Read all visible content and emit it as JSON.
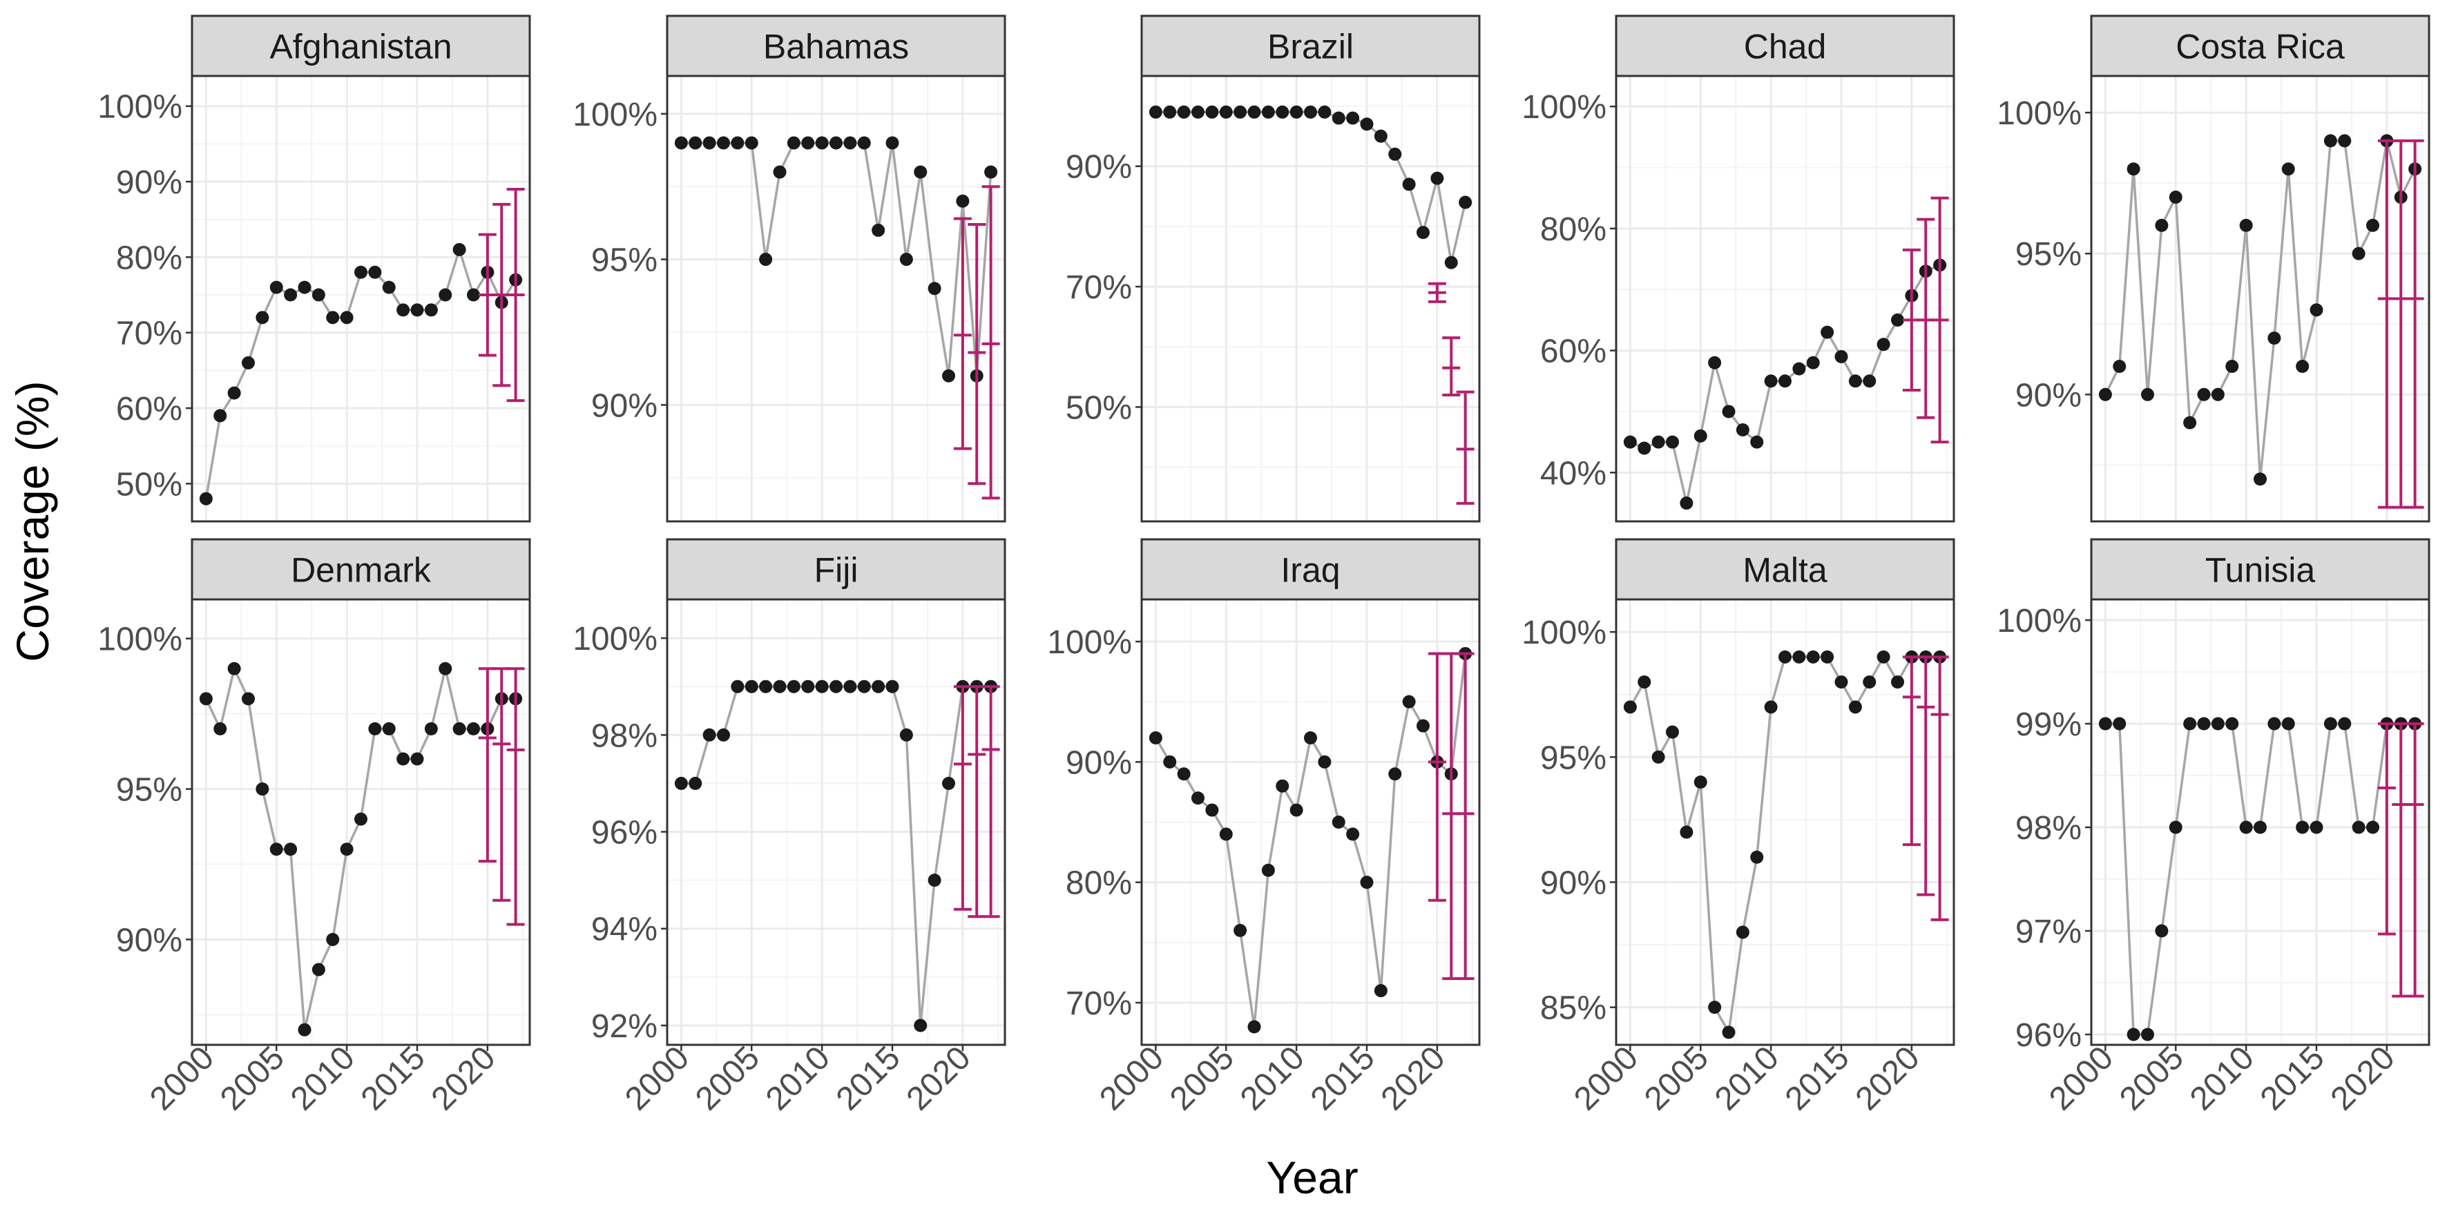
{
  "figure": {
    "xlabel": "Year",
    "ylabel": "Coverage (%)",
    "colors": {
      "line": "#a6a6a6",
      "point": "#1a1a1a",
      "errorbar": "#b3206e",
      "strip": "#d9d9d9",
      "grid_major": "#ebebeb",
      "grid_minor": "#f4f4f4",
      "border": "#333333"
    }
  },
  "chart_data": [
    {
      "type": "line",
      "title": "Afghanistan",
      "x": [
        2000,
        2001,
        2002,
        2003,
        2004,
        2005,
        2006,
        2007,
        2008,
        2009,
        2010,
        2011,
        2012,
        2013,
        2014,
        2015,
        2016,
        2017,
        2018,
        2019,
        2020,
        2021,
        2022
      ],
      "y": [
        48,
        59,
        62,
        66,
        72,
        76,
        75,
        76,
        75,
        72,
        72,
        78,
        78,
        76,
        73,
        73,
        73,
        75,
        81,
        75,
        78,
        74,
        77
      ],
      "errorbars": [
        {
          "x": 2020,
          "mid": 75,
          "lo": 67,
          "hi": 83
        },
        {
          "x": 2021,
          "mid": 75,
          "lo": 63,
          "hi": 87
        },
        {
          "x": 2022,
          "mid": 75,
          "lo": 61,
          "hi": 89
        }
      ],
      "ylim": [
        45,
        104
      ],
      "yticks": [
        50,
        60,
        70,
        80,
        90,
        100
      ],
      "xlim": [
        1999,
        2023
      ],
      "xticks": [
        2000,
        2005,
        2010,
        2015,
        2020
      ]
    },
    {
      "type": "line",
      "title": "Bahamas",
      "x": [
        2000,
        2001,
        2002,
        2003,
        2004,
        2005,
        2006,
        2007,
        2008,
        2009,
        2010,
        2011,
        2012,
        2013,
        2014,
        2015,
        2016,
        2017,
        2018,
        2019,
        2020,
        2021,
        2022
      ],
      "y": [
        99,
        99,
        99,
        99,
        99,
        99,
        95,
        98,
        99,
        99,
        99,
        99,
        99,
        99,
        96,
        99,
        95,
        98,
        94,
        91,
        97,
        91,
        98
      ],
      "errorbars": [
        {
          "x": 2020,
          "mid": 92.4,
          "lo": 88.5,
          "hi": 96.4
        },
        {
          "x": 2021,
          "mid": 91.8,
          "lo": 87.3,
          "hi": 96.2
        },
        {
          "x": 2022,
          "mid": 92.1,
          "lo": 86.8,
          "hi": 97.5
        }
      ],
      "ylim": [
        86,
        101.3
      ],
      "yticks": [
        90,
        95,
        100
      ],
      "xlim": [
        1999,
        2023
      ],
      "xticks": [
        2000,
        2005,
        2010,
        2015,
        2020
      ]
    },
    {
      "type": "line",
      "title": "Brazil",
      "x": [
        2000,
        2001,
        2002,
        2003,
        2004,
        2005,
        2006,
        2007,
        2008,
        2009,
        2010,
        2011,
        2012,
        2013,
        2014,
        2015,
        2016,
        2017,
        2018,
        2019,
        2020,
        2021,
        2022
      ],
      "y": [
        99,
        99,
        99,
        99,
        99,
        99,
        99,
        99,
        99,
        99,
        99,
        99,
        99,
        98,
        98,
        97,
        95,
        92,
        87,
        79,
        88,
        74,
        84
      ],
      "errorbars": [
        {
          "x": 2020,
          "mid": 69,
          "lo": 67.5,
          "hi": 70.5
        },
        {
          "x": 2021,
          "mid": 56.5,
          "lo": 52,
          "hi": 61.5
        },
        {
          "x": 2022,
          "mid": 43,
          "lo": 34,
          "hi": 52.5
        }
      ],
      "ylim": [
        31,
        105
      ],
      "yticks": [
        50,
        70,
        90
      ],
      "xlim": [
        1999,
        2023
      ],
      "xticks": [
        2000,
        2005,
        2010,
        2015,
        2020
      ]
    },
    {
      "type": "line",
      "title": "Chad",
      "x": [
        2000,
        2001,
        2002,
        2003,
        2004,
        2005,
        2006,
        2007,
        2008,
        2009,
        2010,
        2011,
        2012,
        2013,
        2014,
        2015,
        2016,
        2017,
        2018,
        2019,
        2020,
        2021,
        2022
      ],
      "y": [
        45,
        44,
        45,
        45,
        35,
        46,
        58,
        50,
        47,
        45,
        55,
        55,
        57,
        58,
        63,
        59,
        55,
        55,
        61,
        65,
        69,
        73,
        74
      ],
      "errorbars": [
        {
          "x": 2020,
          "mid": 65,
          "lo": 53.5,
          "hi": 76.5
        },
        {
          "x": 2021,
          "mid": 65,
          "lo": 49,
          "hi": 81.5
        },
        {
          "x": 2022,
          "mid": 65,
          "lo": 45,
          "hi": 85
        }
      ],
      "ylim": [
        32,
        105
      ],
      "yticks": [
        40,
        60,
        80,
        100
      ],
      "xlim": [
        1999,
        2023
      ],
      "xticks": [
        2000,
        2005,
        2010,
        2015,
        2020
      ]
    },
    {
      "type": "line",
      "title": "Costa Rica",
      "x": [
        2000,
        2001,
        2002,
        2003,
        2004,
        2005,
        2006,
        2007,
        2008,
        2009,
        2010,
        2011,
        2012,
        2013,
        2014,
        2015,
        2016,
        2017,
        2018,
        2019,
        2020,
        2021,
        2022
      ],
      "y": [
        90,
        91,
        98,
        90,
        96,
        97,
        89,
        90,
        90,
        91,
        96,
        87,
        92,
        98,
        91,
        93,
        99,
        99,
        95,
        96,
        99,
        97,
        98
      ],
      "errorbars": [
        {
          "x": 2020,
          "mid": 93.4,
          "lo": 86,
          "hi": 99
        },
        {
          "x": 2021,
          "mid": 93.4,
          "lo": 86,
          "hi": 99
        },
        {
          "x": 2022,
          "mid": 93.4,
          "lo": 86,
          "hi": 99
        }
      ],
      "ylim": [
        85.5,
        101.3
      ],
      "yticks": [
        90,
        95,
        100
      ],
      "xlim": [
        1999,
        2023
      ],
      "xticks": [
        2000,
        2005,
        2010,
        2015,
        2020
      ]
    },
    {
      "type": "line",
      "title": "Denmark",
      "x": [
        2000,
        2001,
        2002,
        2003,
        2004,
        2005,
        2006,
        2007,
        2008,
        2009,
        2010,
        2011,
        2012,
        2013,
        2014,
        2015,
        2016,
        2017,
        2018,
        2019,
        2020,
        2021,
        2022
      ],
      "y": [
        98,
        97,
        99,
        98,
        95,
        93,
        93,
        87,
        89,
        90,
        93,
        94,
        97,
        97,
        96,
        96,
        97,
        99,
        97,
        97,
        97,
        98,
        98
      ],
      "errorbars": [
        {
          "x": 2020,
          "mid": 96.7,
          "lo": 92.6,
          "hi": 99
        },
        {
          "x": 2021,
          "mid": 96.5,
          "lo": 91.3,
          "hi": 99
        },
        {
          "x": 2022,
          "mid": 96.3,
          "lo": 90.5,
          "hi": 99
        }
      ],
      "ylim": [
        86.5,
        101.3
      ],
      "yticks": [
        90,
        95,
        100
      ],
      "xlim": [
        1999,
        2023
      ],
      "xticks": [
        2000,
        2005,
        2010,
        2015,
        2020
      ]
    },
    {
      "type": "line",
      "title": "Fiji",
      "x": [
        2000,
        2001,
        2002,
        2003,
        2004,
        2005,
        2006,
        2007,
        2008,
        2009,
        2010,
        2011,
        2012,
        2013,
        2014,
        2015,
        2016,
        2017,
        2018,
        2019,
        2020,
        2021,
        2022
      ],
      "y": [
        97,
        97,
        98,
        98,
        99,
        99,
        99,
        99,
        99,
        99,
        99,
        99,
        99,
        99,
        99,
        99,
        98,
        92,
        95,
        97,
        99,
        99,
        99
      ],
      "errorbars": [
        {
          "x": 2020,
          "mid": 97.4,
          "lo": 94.4,
          "hi": 99
        },
        {
          "x": 2021,
          "mid": 97.6,
          "lo": 94.25,
          "hi": 99
        },
        {
          "x": 2022,
          "mid": 97.7,
          "lo": 94.25,
          "hi": 99
        }
      ],
      "ylim": [
        91.6,
        100.8
      ],
      "yticks": [
        92,
        94,
        96,
        98,
        100
      ],
      "xlim": [
        1999,
        2023
      ],
      "xticks": [
        2000,
        2005,
        2010,
        2015,
        2020
      ]
    },
    {
      "type": "line",
      "title": "Iraq",
      "x": [
        2000,
        2001,
        2002,
        2003,
        2004,
        2005,
        2006,
        2007,
        2008,
        2009,
        2010,
        2011,
        2012,
        2013,
        2014,
        2015,
        2016,
        2017,
        2018,
        2019,
        2020,
        2021,
        2022
      ],
      "y": [
        92,
        90,
        89,
        87,
        86,
        84,
        76,
        68,
        81,
        88,
        86,
        92,
        90,
        85,
        84,
        80,
        71,
        89,
        95,
        93,
        90,
        89,
        99
      ],
      "errorbars": [
        {
          "x": 2020,
          "mid": 90,
          "lo": 78.5,
          "hi": 99
        },
        {
          "x": 2021,
          "mid": 85.7,
          "lo": 72,
          "hi": 99
        },
        {
          "x": 2022,
          "mid": 85.7,
          "lo": 72,
          "hi": 99
        }
      ],
      "ylim": [
        66.5,
        103.5
      ],
      "yticks": [
        70,
        80,
        90,
        100
      ],
      "xlim": [
        1999,
        2023
      ],
      "xticks": [
        2000,
        2005,
        2010,
        2015,
        2020
      ]
    },
    {
      "type": "line",
      "title": "Malta",
      "x": [
        2000,
        2001,
        2002,
        2003,
        2004,
        2005,
        2006,
        2007,
        2008,
        2009,
        2010,
        2011,
        2012,
        2013,
        2014,
        2015,
        2016,
        2017,
        2018,
        2019,
        2020,
        2021,
        2022
      ],
      "y": [
        97,
        98,
        95,
        96,
        92,
        94,
        85,
        84,
        88,
        91,
        97,
        99,
        99,
        99,
        99,
        98,
        97,
        98,
        99,
        98,
        99,
        99,
        99
      ],
      "errorbars": [
        {
          "x": 2020,
          "mid": 97.4,
          "lo": 91.5,
          "hi": 99
        },
        {
          "x": 2021,
          "mid": 97,
          "lo": 89.5,
          "hi": 99
        },
        {
          "x": 2022,
          "mid": 96.7,
          "lo": 88.5,
          "hi": 99
        }
      ],
      "ylim": [
        83.5,
        101.3
      ],
      "yticks": [
        85,
        90,
        95,
        100
      ],
      "xlim": [
        1999,
        2023
      ],
      "xticks": [
        2000,
        2005,
        2010,
        2015,
        2020
      ]
    },
    {
      "type": "line",
      "title": "Tunisia",
      "x": [
        2000,
        2001,
        2002,
        2003,
        2004,
        2005,
        2006,
        2007,
        2008,
        2009,
        2010,
        2011,
        2012,
        2013,
        2014,
        2015,
        2016,
        2017,
        2018,
        2019,
        2020,
        2021,
        2022
      ],
      "y": [
        99,
        99,
        96,
        96,
        97,
        98,
        99,
        99,
        99,
        99,
        98,
        98,
        99,
        99,
        98,
        98,
        99,
        99,
        98,
        98,
        99,
        99,
        99
      ],
      "errorbars": [
        {
          "x": 2020,
          "mid": 98.38,
          "lo": 96.97,
          "hi": 99
        },
        {
          "x": 2021,
          "mid": 98.22,
          "lo": 96.37,
          "hi": 99
        },
        {
          "x": 2022,
          "mid": 98.22,
          "lo": 96.37,
          "hi": 99
        }
      ],
      "ylim": [
        95.9,
        100.2
      ],
      "yticks": [
        96,
        97,
        98,
        99,
        100
      ],
      "xlim": [
        1999,
        2023
      ],
      "xticks": [
        2000,
        2005,
        2010,
        2015,
        2020
      ]
    }
  ]
}
